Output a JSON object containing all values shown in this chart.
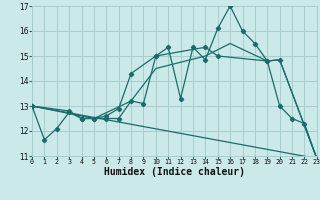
{
  "xlabel": "Humidex (Indice chaleur)",
  "background_color": "#cce9e9",
  "grid_color": "#a8cccc",
  "line_color": "#1a6b6b",
  "xlim": [
    0,
    23
  ],
  "ylim": [
    11,
    17
  ],
  "xticks": [
    0,
    1,
    2,
    3,
    4,
    5,
    6,
    7,
    8,
    9,
    10,
    11,
    12,
    13,
    14,
    15,
    16,
    17,
    18,
    19,
    20,
    21,
    22,
    23
  ],
  "yticks": [
    11,
    12,
    13,
    14,
    15,
    16,
    17
  ],
  "lines": [
    {
      "x": [
        0,
        1,
        2,
        3,
        4,
        5,
        6,
        7,
        8,
        9,
        10,
        11,
        12,
        13,
        14,
        15,
        16,
        17,
        18,
        19,
        20,
        21,
        22,
        23
      ],
      "y": [
        13.0,
        11.65,
        12.1,
        12.75,
        12.5,
        12.5,
        12.5,
        12.5,
        13.2,
        13.1,
        15.0,
        15.35,
        13.3,
        15.35,
        14.85,
        16.1,
        17.0,
        16.0,
        15.5,
        14.8,
        13.0,
        12.5,
        12.3,
        10.9
      ],
      "marker": true
    },
    {
      "x": [
        0,
        3,
        4,
        5,
        6,
        7,
        8,
        10,
        14,
        15,
        19,
        20,
        23
      ],
      "y": [
        13.0,
        12.8,
        12.5,
        12.5,
        12.6,
        12.9,
        14.3,
        15.0,
        15.35,
        15.0,
        14.8,
        14.85,
        10.9
      ],
      "marker": true
    },
    {
      "x": [
        0,
        5,
        8,
        10,
        14,
        16,
        19,
        20,
        23
      ],
      "y": [
        13.0,
        12.5,
        13.2,
        14.5,
        15.0,
        15.5,
        14.8,
        14.85,
        10.9
      ],
      "marker": false
    },
    {
      "x": [
        0,
        23
      ],
      "y": [
        13.0,
        10.9
      ],
      "marker": false
    }
  ]
}
